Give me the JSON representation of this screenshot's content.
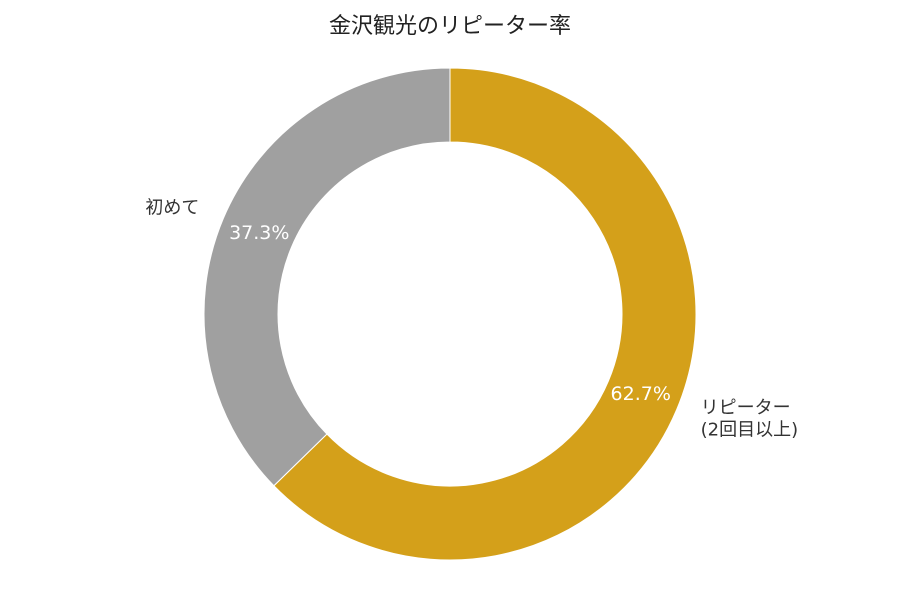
{
  "chart_data": {
    "type": "pie",
    "title": "金沢観光のリピーター率",
    "donut": true,
    "start_angle": "12 o'clock",
    "direction": "clockwise",
    "slices": [
      {
        "label": "リピーター\n(2回目以上)",
        "value": 62.7,
        "percent_label": "62.7%",
        "color": "#D4A01A"
      },
      {
        "label": "初めて",
        "value": 37.3,
        "percent_label": "37.3%",
        "color": "#A0A0A0"
      }
    ]
  }
}
